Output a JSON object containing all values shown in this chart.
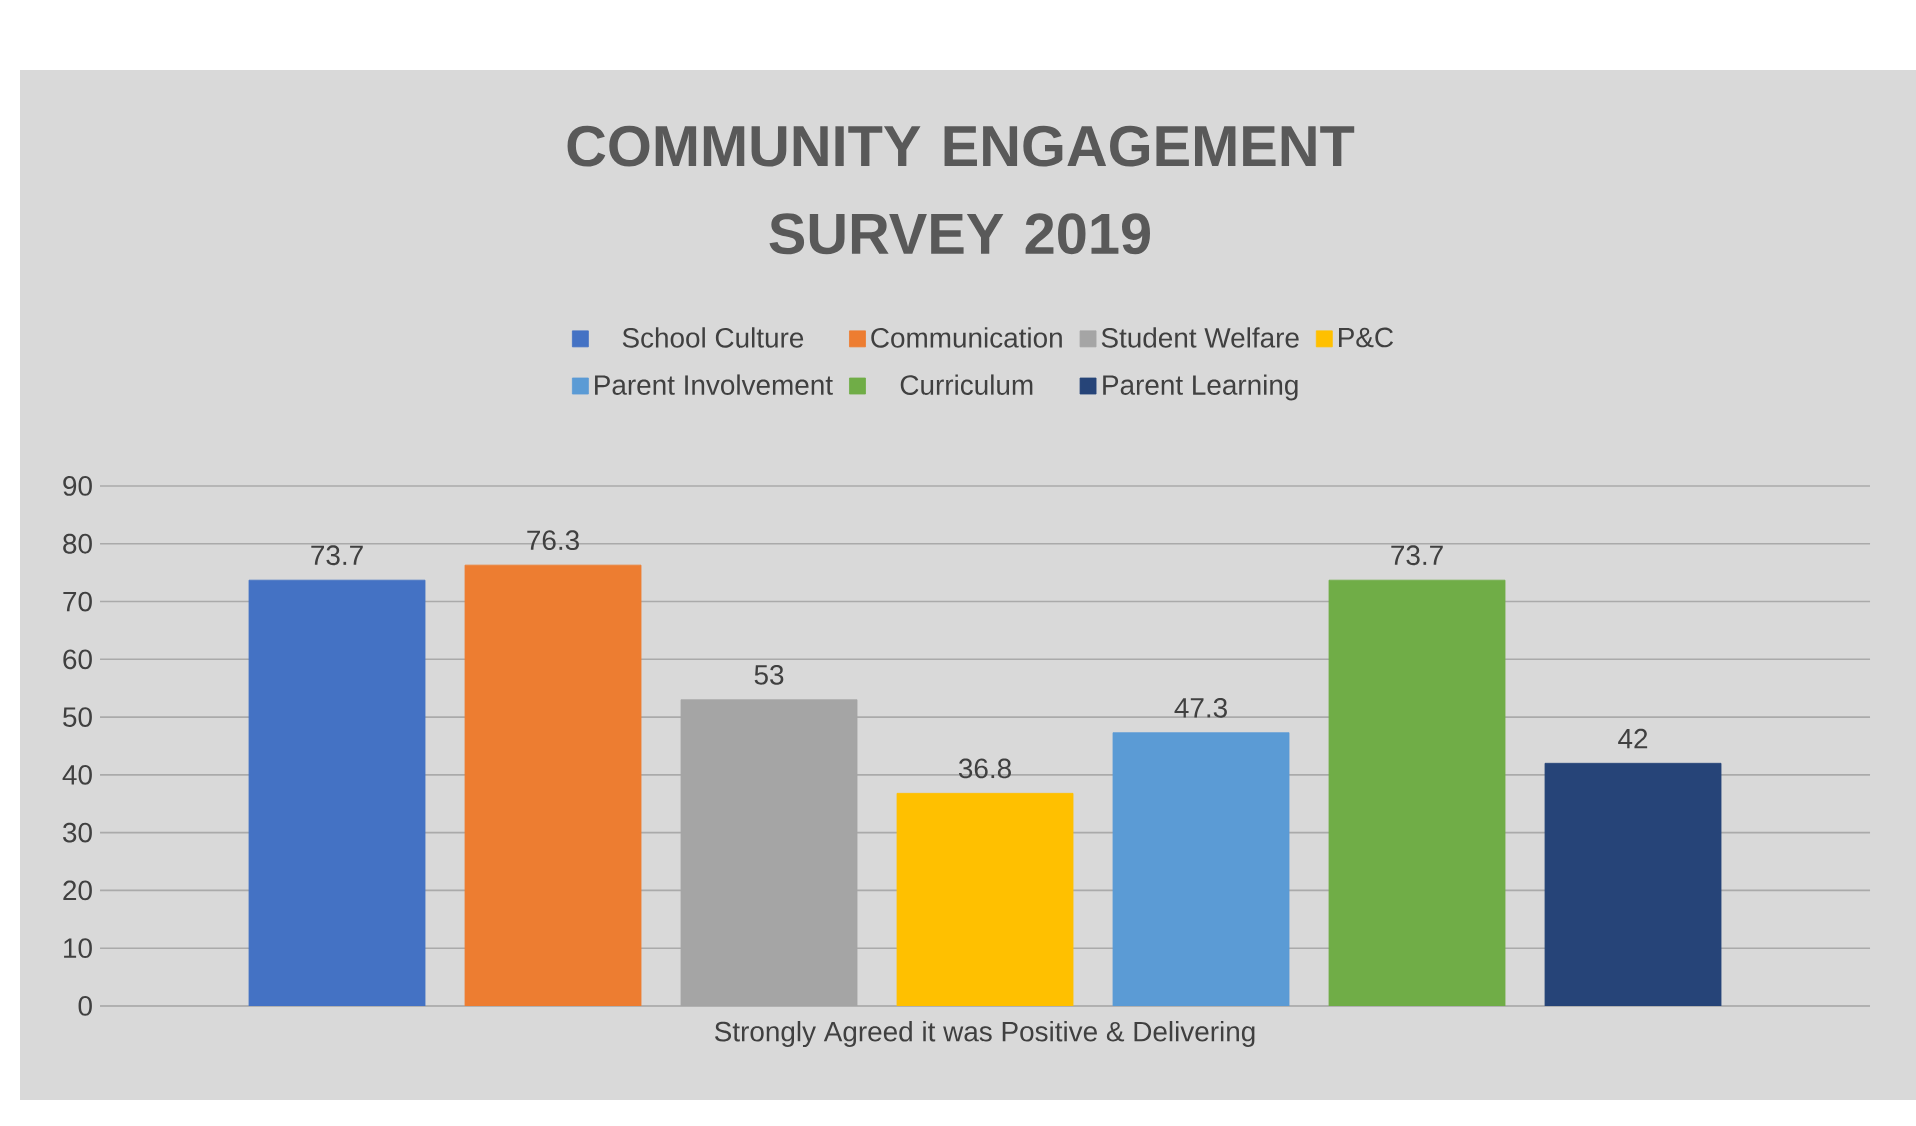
{
  "chart_data": {
    "type": "bar",
    "title": "COMMUNITY ENGAGEMENT SURVEY 2019",
    "categories": [
      "Strongly Agreed it was Positive & Delivering"
    ],
    "series": [
      {
        "name": "School Culture",
        "color": "#4472c4",
        "values": [
          73.7
        ]
      },
      {
        "name": "Communication",
        "color": "#ed7d31",
        "values": [
          76.3
        ]
      },
      {
        "name": "Student Welfare",
        "color": "#a5a5a5",
        "values": [
          53
        ]
      },
      {
        "name": "P&C",
        "color": "#ffc000",
        "values": [
          36.8
        ]
      },
      {
        "name": "Parent Involvement",
        "color": "#5b9bd5",
        "values": [
          47.3
        ]
      },
      {
        "name": "Curriculum",
        "color": "#70ad47",
        "values": [
          73.7
        ]
      },
      {
        "name": "Parent Learning",
        "color": "#264478",
        "values": [
          42
        ]
      }
    ],
    "ylim": [
      0,
      90
    ],
    "yticks": [
      0,
      10,
      20,
      30,
      40,
      50,
      60,
      70,
      80,
      90
    ],
    "grid": "y",
    "legend": "top",
    "data_labels": true
  }
}
